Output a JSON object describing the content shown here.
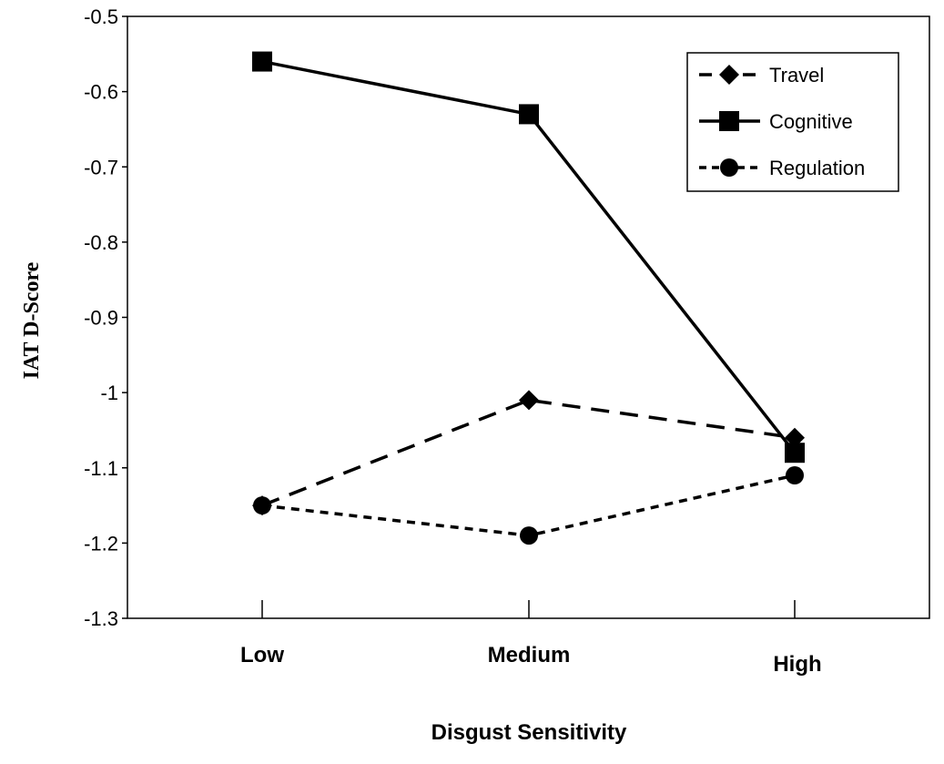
{
  "chart_data": {
    "type": "line",
    "xlabel": "Disgust Sensitivity",
    "ylabel": "IAT D-Score",
    "categories": [
      "Low",
      "Medium",
      "High"
    ],
    "ylim": [
      -1.3,
      -0.5
    ],
    "yticks": [
      "-0.5",
      "-0.6",
      "-0.7",
      "-0.8",
      "-0.9",
      "-1",
      "-1.1",
      "-1.2",
      "-1.3"
    ],
    "grid": false,
    "legend_position": "top-right",
    "series": [
      {
        "name": "Travel",
        "values": [
          -1.15,
          -1.01,
          -1.06
        ],
        "marker": "diamond",
        "dash": "long-dash",
        "color": "#000000"
      },
      {
        "name": "Cognitive",
        "values": [
          -0.56,
          -0.63,
          -1.08
        ],
        "marker": "square",
        "dash": "solid",
        "color": "#000000"
      },
      {
        "name": "Regulation",
        "values": [
          -1.15,
          -1.19,
          -1.11
        ],
        "marker": "circle",
        "dash": "short-dash",
        "color": "#000000"
      }
    ]
  }
}
